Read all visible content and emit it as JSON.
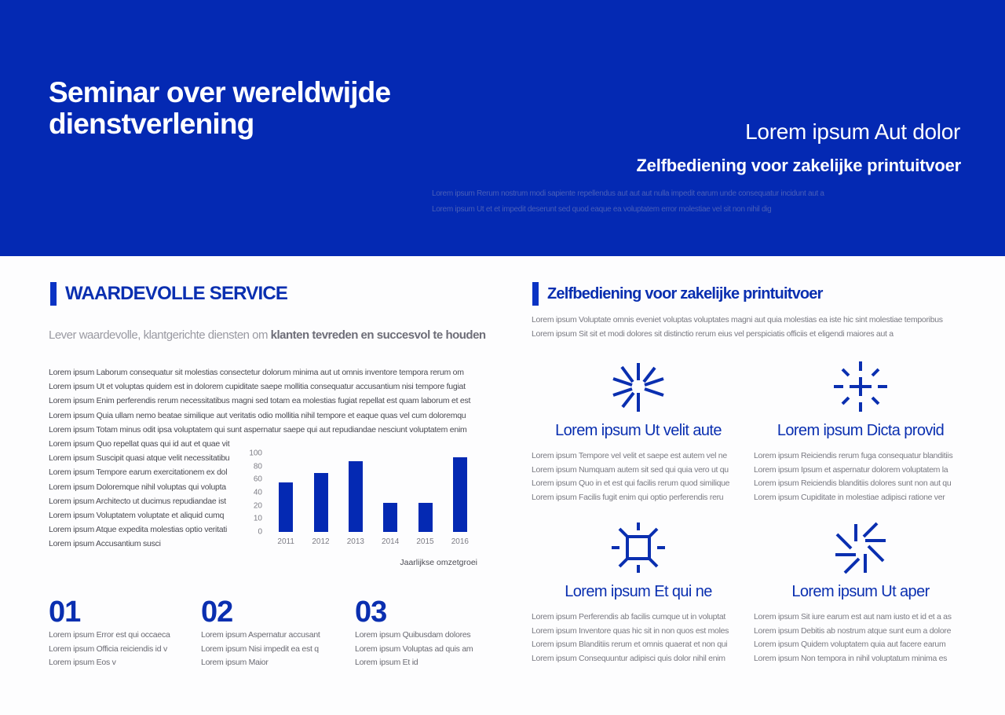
{
  "colors": {
    "brand_blue": "#0429b3",
    "heading_blue": "#0a2fb0",
    "white": "#ffffff"
  },
  "hero": {
    "title": "Seminar over wereldwijde dienstverlening",
    "subtitle_primary": "Lorem ipsum Aut dolor",
    "subtitle_secondary": "Zelfbediening voor zakelijke printuitvoer",
    "description": [
      "Lorem ipsum Rerum nostrum modi sapiente repellendus aut aut aut nulla impedit earum unde consequatur incidunt aut a",
      "Lorem ipsum Ut et et impedit deserunt sed quod eaque ea voluptatem error molestiae vel sit non nihil dig"
    ]
  },
  "left": {
    "section_title": "WAARDEVOLLE SERVICE",
    "lead_light": "Lever waardevolle, klantgerichte diensten om ",
    "lead_bold": "klanten tevreden en succesvol te houden",
    "paragraph_full": [
      "Lorem ipsum Laborum consequatur sit molestias consectetur dolorum minima aut ut omnis inventore tempora rerum om",
      "Lorem ipsum Ut et voluptas quidem est in dolorem cupiditate saepe mollitia consequatur accusantium nisi tempore fugiat",
      "Lorem ipsum Enim perferendis rerum necessitatibus magni sed totam ea molestias fugiat repellat est quam laborum et est",
      "Lorem ipsum Quia ullam nemo beatae similique aut veritatis odio mollitia nihil tempore et eaque quas vel cum doloremqu",
      "Lorem ipsum Totam minus odit ipsa voluptatem qui sunt aspernatur saepe qui aut repudiandae nesciunt voluptatem enim"
    ],
    "paragraph_narrow": [
      "Lorem ipsum Quo repellat quas qui id aut et quae vit",
      "Lorem ipsum Suscipit quasi atque velit necessitatibu",
      "Lorem ipsum Tempore earum exercitationem ex dol",
      "Lorem ipsum Doloremque nihil voluptas qui volupta",
      "Lorem ipsum Architecto ut ducimus repudiandae ist",
      "Lorem ipsum Voluptatem voluptate et aliquid cumq",
      "Lorem ipsum Atque expedita molestias optio veritati",
      "Lorem ipsum Accusantium susci"
    ],
    "numbered": [
      {
        "number": "01",
        "lines": [
          "Lorem ipsum Error est qui occaeca",
          "Lorem ipsum Officia reiciendis id v",
          "Lorem ipsum Eos v"
        ]
      },
      {
        "number": "02",
        "lines": [
          "Lorem ipsum Aspernatur accusant",
          "Lorem ipsum Nisi impedit ea est q",
          "Lorem ipsum Maior"
        ]
      },
      {
        "number": "03",
        "lines": [
          "Lorem ipsum Quibusdam dolores",
          "Lorem ipsum Voluptas ad quis am",
          "Lorem ipsum Et id"
        ]
      }
    ]
  },
  "chart_data": {
    "type": "bar",
    "title": "",
    "caption": "Jaarlijkse omzetgroei",
    "xlabel": "",
    "ylabel": "",
    "categories": [
      "2011",
      "2012",
      "2013",
      "2014",
      "2015",
      "2016"
    ],
    "values": [
      56,
      70,
      88,
      25,
      25,
      94
    ],
    "y_ticks": [
      "100",
      "80",
      "60",
      "40",
      "20",
      "10",
      "0"
    ],
    "ylim": [
      0,
      100
    ],
    "grid": false,
    "legend": "none",
    "bar_color": "#0429b3"
  },
  "right": {
    "section_title": "Zelfbediening voor zakelijke printuitvoer",
    "description": [
      "Lorem ipsum Voluptate omnis eveniet voluptas voluptates magni aut quia molestias ea iste hic sint molestiae temporibus",
      "Lorem ipsum Sit sit et modi dolores sit distinctio rerum eius vel perspiciatis officiis et eligendi maiores aut a"
    ],
    "features": [
      {
        "icon": "starburst-icon",
        "title": "Lorem ipsum Ut velit aute",
        "lines": [
          "Lorem ipsum Tempore vel velit et saepe est autem vel ne",
          "Lorem ipsum Numquam autem sit sed qui quia vero ut qu",
          "Lorem ipsum Quo in et est qui facilis rerum quod similique",
          "Lorem ipsum Facilis fugit enim qui optio perferendis reru"
        ]
      },
      {
        "icon": "sparkle-plus-icon",
        "title": "Lorem ipsum Dicta provid",
        "lines": [
          "Lorem ipsum Reiciendis rerum fuga consequatur blanditiis",
          "Lorem ipsum Ipsum et aspernatur dolorem voluptatem la",
          "Lorem ipsum Reiciendis blanditiis dolores sunt non aut qu",
          "Lorem ipsum Cupiditate in molestiae adipisci ratione ver"
        ]
      },
      {
        "icon": "square-sun-icon",
        "title": "Lorem ipsum Et qui ne",
        "lines": [
          "Lorem ipsum Perferendis ab facilis cumque ut in voluptat",
          "Lorem ipsum Inventore quas hic sit in non quos est moles",
          "Lorem ipsum Blanditiis rerum et omnis quaerat et non qui",
          "Lorem ipsum Consequuntur adipisci quis dolor nihil enim"
        ]
      },
      {
        "icon": "pinwheel-icon",
        "title": "Lorem ipsum Ut aper",
        "lines": [
          "Lorem ipsum Sit iure earum est aut nam iusto et id et a as",
          "Lorem ipsum Debitis ab nostrum atque sunt eum a dolore",
          "Lorem ipsum Quidem voluptatem quia aut facere earum",
          "Lorem ipsum Non tempora in nihil voluptatum minima es"
        ]
      }
    ]
  }
}
